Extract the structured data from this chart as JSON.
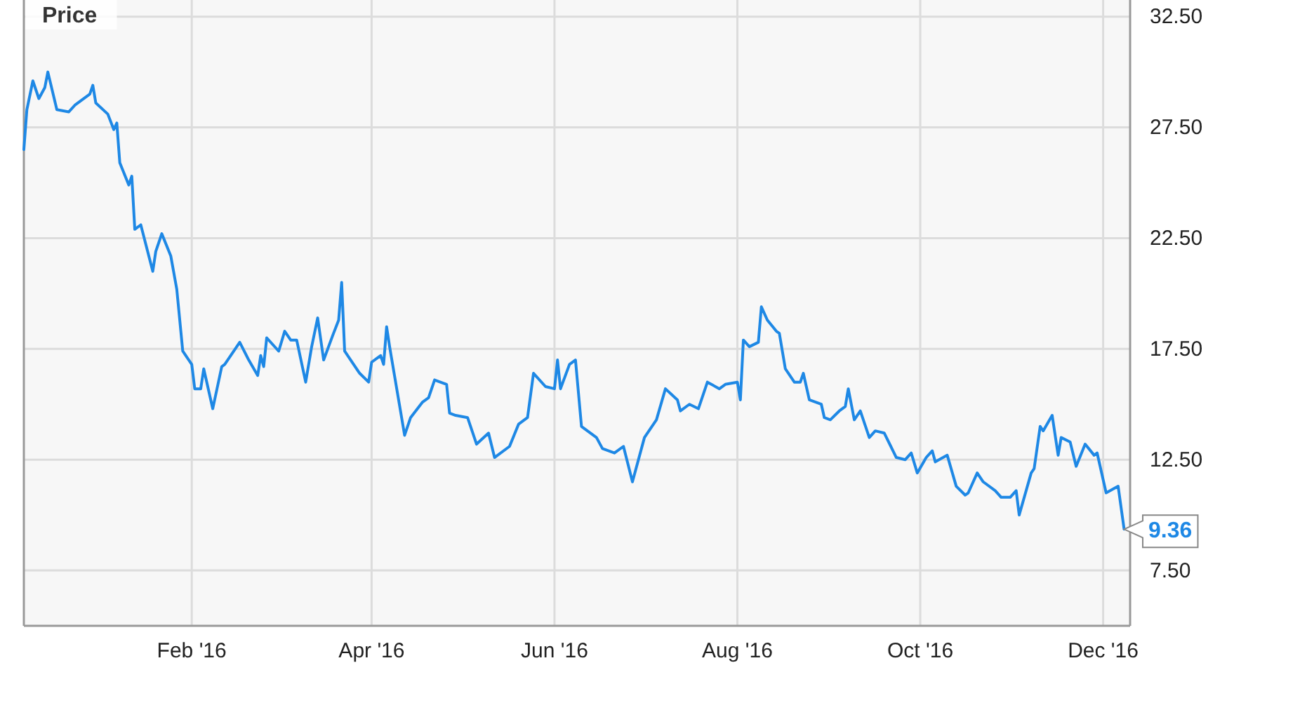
{
  "chart_data": {
    "type": "line",
    "title": "Price",
    "series": [
      {
        "color": "#1e88e5",
        "x": [
          "2015-12-07",
          "2015-12-08",
          "2015-12-10",
          "2015-12-12",
          "2015-12-14",
          "2015-12-15",
          "2015-12-18",
          "2015-12-22",
          "2015-12-24",
          "2015-12-29",
          "2015-12-30",
          "2015-12-31",
          "2016-01-04",
          "2016-01-06",
          "2016-01-07",
          "2016-01-08",
          "2016-01-11",
          "2016-01-12",
          "2016-01-13",
          "2016-01-15",
          "2016-01-19",
          "2016-01-20",
          "2016-01-22",
          "2016-01-25",
          "2016-01-27",
          "2016-01-29",
          "2016-02-01",
          "2016-02-02",
          "2016-02-04",
          "2016-02-05",
          "2016-02-08",
          "2016-02-11",
          "2016-02-12",
          "2016-02-17",
          "2016-02-20",
          "2016-02-23",
          "2016-02-24",
          "2016-02-25",
          "2016-02-26",
          "2016-03-01",
          "2016-03-03",
          "2016-03-05",
          "2016-03-07",
          "2016-03-10",
          "2016-03-12",
          "2016-03-14",
          "2016-03-16",
          "2016-03-19",
          "2016-03-21",
          "2016-03-22",
          "2016-03-23",
          "2016-03-28",
          "2016-03-31",
          "2016-04-01",
          "2016-04-04",
          "2016-04-05",
          "2016-04-06",
          "2016-04-07",
          "2016-04-12",
          "2016-04-14",
          "2016-04-18",
          "2016-04-20",
          "2016-04-22",
          "2016-04-26",
          "2016-04-27",
          "2016-04-29",
          "2016-05-03",
          "2016-05-06",
          "2016-05-10",
          "2016-05-12",
          "2016-05-17",
          "2016-05-20",
          "2016-05-23",
          "2016-05-25",
          "2016-05-29",
          "2016-06-01",
          "2016-06-02",
          "2016-06-03",
          "2016-06-06",
          "2016-06-08",
          "2016-06-10",
          "2016-06-15",
          "2016-06-17",
          "2016-06-21",
          "2016-06-24",
          "2016-06-27",
          "2016-07-01",
          "2016-07-05",
          "2016-07-08",
          "2016-07-12",
          "2016-07-13",
          "2016-07-16",
          "2016-07-19",
          "2016-07-22",
          "2016-07-26",
          "2016-07-28",
          "2016-08-01",
          "2016-08-02",
          "2016-08-03",
          "2016-08-05",
          "2016-08-08",
          "2016-08-09",
          "2016-08-11",
          "2016-08-14",
          "2016-08-15",
          "2016-08-17",
          "2016-08-20",
          "2016-08-22",
          "2016-08-23",
          "2016-08-25",
          "2016-08-29",
          "2016-08-30",
          "2016-09-01",
          "2016-09-04",
          "2016-09-06",
          "2016-09-07",
          "2016-09-09",
          "2016-09-11",
          "2016-09-14",
          "2016-09-16",
          "2016-09-19",
          "2016-09-23",
          "2016-09-26",
          "2016-09-28",
          "2016-09-30",
          "2016-10-03",
          "2016-10-05",
          "2016-10-06",
          "2016-10-10",
          "2016-10-13",
          "2016-10-16",
          "2016-10-17",
          "2016-10-20",
          "2016-10-22",
          "2016-10-26",
          "2016-10-28",
          "2016-10-31",
          "2016-11-02",
          "2016-11-03",
          "2016-11-07",
          "2016-11-08",
          "2016-11-10",
          "2016-11-11",
          "2016-11-14",
          "2016-11-16",
          "2016-11-17",
          "2016-11-20",
          "2016-11-22",
          "2016-11-25",
          "2016-11-28",
          "2016-11-29",
          "2016-12-02",
          "2016-12-06",
          "2016-12-08"
        ],
        "values": [
          26.5,
          28.3,
          29.6,
          28.8,
          29.3,
          30.0,
          28.3,
          28.2,
          28.5,
          29.0,
          29.4,
          28.6,
          28.1,
          27.4,
          27.7,
          25.9,
          24.9,
          25.3,
          22.9,
          23.1,
          21.0,
          21.9,
          22.7,
          21.7,
          20.2,
          17.4,
          16.8,
          15.7,
          15.7,
          16.6,
          14.8,
          16.7,
          16.8,
          17.8,
          17.0,
          16.3,
          17.2,
          16.7,
          18.0,
          17.4,
          18.3,
          17.9,
          17.9,
          16.0,
          17.6,
          18.9,
          17.0,
          18.1,
          18.8,
          20.5,
          17.4,
          16.4,
          16.0,
          16.9,
          17.2,
          16.8,
          18.5,
          17.6,
          13.6,
          14.4,
          15.1,
          15.3,
          16.1,
          15.9,
          14.6,
          14.5,
          14.4,
          13.2,
          13.7,
          12.6,
          13.1,
          14.1,
          14.4,
          16.4,
          15.8,
          15.7,
          17.0,
          15.7,
          16.8,
          17.0,
          14.0,
          13.5,
          13.0,
          12.8,
          13.1,
          11.5,
          13.5,
          14.3,
          15.7,
          15.2,
          14.7,
          15.0,
          14.8,
          16.0,
          15.7,
          15.9,
          16.0,
          15.2,
          17.9,
          17.6,
          17.8,
          19.4,
          18.8,
          18.3,
          18.2,
          16.6,
          16.0,
          16.0,
          16.4,
          15.2,
          15.0,
          14.4,
          14.3,
          14.7,
          14.9,
          15.7,
          14.3,
          14.7,
          13.5,
          13.8,
          13.7,
          12.6,
          12.5,
          12.8,
          11.9,
          12.6,
          12.9,
          12.4,
          12.7,
          11.3,
          10.9,
          11.0,
          11.9,
          11.5,
          11.1,
          10.8,
          10.8,
          11.1,
          10.0,
          11.9,
          12.1,
          14.0,
          13.8,
          14.5,
          12.7,
          13.5,
          13.3,
          12.2,
          13.2,
          12.7,
          12.8,
          11.0,
          11.3,
          9.36
        ]
      }
    ],
    "annotations": [
      {
        "text": "9.36",
        "x": "2016-12-08",
        "y": 9.36
      }
    ],
    "xlim": [
      "2015-12-07",
      "2016-12-10"
    ],
    "xticks": [
      {
        "value": "2016-02-01",
        "label": "Feb '16"
      },
      {
        "value": "2016-04-01",
        "label": "Apr '16"
      },
      {
        "value": "2016-06-01",
        "label": "Jun '16"
      },
      {
        "value": "2016-08-01",
        "label": "Aug '16"
      },
      {
        "value": "2016-10-01",
        "label": "Oct '16"
      },
      {
        "value": "2016-12-01",
        "label": "Dec '16"
      }
    ],
    "ylim": [
      5,
      33.25
    ],
    "yticks": [
      {
        "value": 7.5,
        "label": "7.50"
      },
      {
        "value": 12.5,
        "label": "12.50"
      },
      {
        "value": 17.5,
        "label": "17.50"
      },
      {
        "value": 22.5,
        "label": "22.50"
      },
      {
        "value": 27.5,
        "label": "27.50"
      },
      {
        "value": 32.5,
        "label": "32.50"
      }
    ],
    "grid": true,
    "marker": "none",
    "line_style": "solid"
  }
}
